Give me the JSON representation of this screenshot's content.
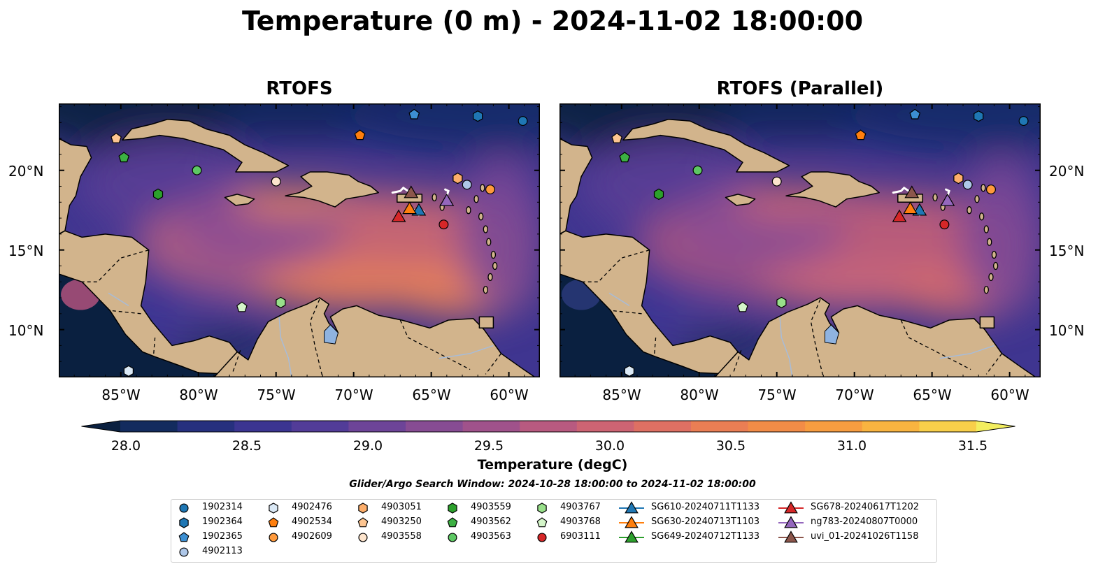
{
  "title": "Temperature (0 m) - 2024-11-02 18:00:00",
  "panels": [
    {
      "title": "RTOFS"
    },
    {
      "title": "RTOFS (Parallel)"
    }
  ],
  "lat_labels": [
    "20°N",
    "15°N",
    "10°N"
  ],
  "lon_labels": [
    "85°W",
    "80°W",
    "75°W",
    "70°W",
    "65°W",
    "60°W"
  ],
  "colorbar": {
    "label": "Temperature (degC)",
    "ticks": [
      "28.0",
      "28.5",
      "29.0",
      "29.5",
      "30.0",
      "30.5",
      "31.0",
      "31.5"
    ],
    "colors": [
      "#0a2040",
      "#132b5e",
      "#26307e",
      "#3b3591",
      "#523c98",
      "#6d4498",
      "#874c93",
      "#a0528b",
      "#b85a80",
      "#cd6473",
      "#de7063",
      "#ea7e54",
      "#f28c47",
      "#f79d40",
      "#f9b440",
      "#f8cf4a",
      "#f3ee5f"
    ]
  },
  "search_window": "Glider/Argo Search Window: 2024-10-28 18:00:00 to 2024-11-02 18:00:00",
  "legend": {
    "columns": [
      [
        {
          "label": "1902314",
          "marker": "circle",
          "color": "#1f77b4"
        },
        {
          "label": "1902364",
          "marker": "hexagon",
          "color": "#1f77b4"
        },
        {
          "label": "1902365",
          "marker": "pentagon",
          "color": "#3c8fd2"
        },
        {
          "label": "4902113",
          "marker": "circle",
          "color": "#aec7e8"
        }
      ],
      [
        {
          "label": "4902476",
          "marker": "hexagon",
          "color": "#dbe9f6"
        },
        {
          "label": "4902534",
          "marker": "pentagon",
          "color": "#ff7f0e"
        },
        {
          "label": "4902609",
          "marker": "circle",
          "color": "#ff9a3c"
        }
      ],
      [
        {
          "label": "4903051",
          "marker": "hexagon",
          "color": "#fdae6b"
        },
        {
          "label": "4903250",
          "marker": "pentagon",
          "color": "#fdc591"
        },
        {
          "label": "4903558",
          "marker": "circle",
          "color": "#fde4cc"
        }
      ],
      [
        {
          "label": "4903559",
          "marker": "hexagon",
          "color": "#2ca02c"
        },
        {
          "label": "4903562",
          "marker": "pentagon",
          "color": "#3cb043"
        },
        {
          "label": "4903563",
          "marker": "circle",
          "color": "#5dc863"
        }
      ],
      [
        {
          "label": "4903767",
          "marker": "hexagon",
          "color": "#98df8a"
        },
        {
          "label": "4903768",
          "marker": "pentagon",
          "color": "#d4f5c9"
        },
        {
          "label": "6903111",
          "marker": "circle",
          "color": "#d62728"
        }
      ],
      [
        {
          "label": "SG610-20240711T1133",
          "marker": "triangle",
          "color": "#1f77b4"
        },
        {
          "label": "SG630-20240713T1103",
          "marker": "triangle",
          "color": "#ff7f0e"
        },
        {
          "label": "SG649-20240712T1133",
          "marker": "triangle",
          "color": "#2ca02c"
        }
      ],
      [
        {
          "label": "SG678-20240617T1202",
          "marker": "triangle",
          "color": "#d62728"
        },
        {
          "label": "ng783-20240807T0000",
          "marker": "triangle",
          "color": "#9467bd"
        },
        {
          "label": "uvi_01-20241026T1158",
          "marker": "triangle",
          "color": "#8c564b"
        }
      ]
    ]
  },
  "map": {
    "lon_range": [
      -89,
      -58
    ],
    "lat_range": [
      7,
      24.2
    ],
    "land_color": "#d2b48c",
    "ocean_color_dark": "#0a2040"
  },
  "platforms": [
    {
      "id": "1902314",
      "lon": -59.1,
      "lat": 23.1,
      "marker": "circle",
      "color": "#1f77b4"
    },
    {
      "id": "1902364",
      "lon": -62.0,
      "lat": 23.4,
      "marker": "hexagon",
      "color": "#1f77b4"
    },
    {
      "id": "1902365",
      "lon": -66.1,
      "lat": 23.5,
      "marker": "pentagon",
      "color": "#3c8fd2"
    },
    {
      "id": "4902113",
      "lon": -62.7,
      "lat": 19.1,
      "marker": "circle",
      "color": "#aec7e8"
    },
    {
      "id": "4902476",
      "lon": -84.5,
      "lat": 7.4,
      "marker": "hexagon",
      "color": "#dbe9f6"
    },
    {
      "id": "4902534",
      "lon": -69.6,
      "lat": 22.2,
      "marker": "pentagon",
      "color": "#ff7f0e"
    },
    {
      "id": "4902609",
      "lon": -61.2,
      "lat": 18.8,
      "marker": "circle",
      "color": "#ff9a3c"
    },
    {
      "id": "4903051",
      "lon": -63.3,
      "lat": 19.5,
      "marker": "hexagon",
      "color": "#fdae6b"
    },
    {
      "id": "4903250",
      "lon": -85.3,
      "lat": 22.0,
      "marker": "pentagon",
      "color": "#fdc591"
    },
    {
      "id": "4903558",
      "lon": -75.0,
      "lat": 19.3,
      "marker": "circle",
      "color": "#fde4cc"
    },
    {
      "id": "4903559",
      "lon": -82.6,
      "lat": 18.5,
      "marker": "hexagon",
      "color": "#2ca02c"
    },
    {
      "id": "4903562",
      "lon": -84.8,
      "lat": 20.8,
      "marker": "pentagon",
      "color": "#3cb043"
    },
    {
      "id": "4903563",
      "lon": -80.1,
      "lat": 20.0,
      "marker": "circle",
      "color": "#5dc863"
    },
    {
      "id": "4903767",
      "lon": -74.7,
      "lat": 11.7,
      "marker": "hexagon",
      "color": "#98df8a"
    },
    {
      "id": "4903768",
      "lon": -77.2,
      "lat": 11.4,
      "marker": "pentagon",
      "color": "#d4f5c9"
    },
    {
      "id": "6903111",
      "lon": -64.2,
      "lat": 16.6,
      "marker": "circle",
      "color": "#d62728"
    },
    {
      "id": "SG610-20240711T1133",
      "lon": -65.8,
      "lat": 17.5,
      "marker": "triangle",
      "color": "#1f77b4"
    },
    {
      "id": "SG630-20240713T1103",
      "lon": -66.4,
      "lat": 17.6,
      "marker": "triangle",
      "color": "#ff7f0e"
    },
    {
      "id": "SG678-20240617T1202",
      "lon": -67.1,
      "lat": 17.1,
      "marker": "triangle",
      "color": "#d62728"
    },
    {
      "id": "ng783-20240807T0000",
      "lon": -64.0,
      "lat": 18.1,
      "marker": "triangle",
      "color": "#9467bd"
    },
    {
      "id": "uvi_01-20241026T1158",
      "lon": -66.3,
      "lat": 18.6,
      "marker": "triangle",
      "color": "#8c564b"
    }
  ]
}
